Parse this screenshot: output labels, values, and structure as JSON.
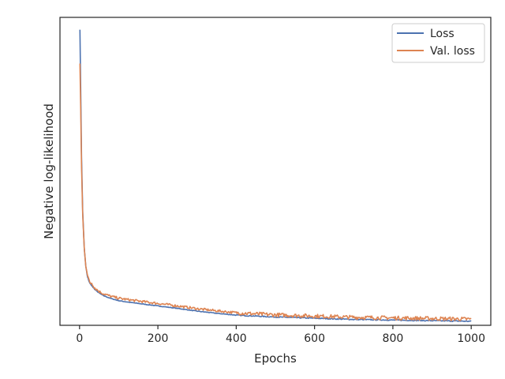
{
  "chart_data": {
    "type": "line",
    "title": "",
    "xlabel": "Epochs",
    "ylabel": "Negative log-likelihood",
    "xlim": [
      -50,
      1050
    ],
    "ylim": [
      0,
      1
    ],
    "x_ticks": [
      "0",
      "200",
      "400",
      "600",
      "800",
      "1000"
    ],
    "y_ticks_shown": false,
    "grid": false,
    "legend": "top-right",
    "series": [
      {
        "name": "Loss",
        "color": "#4c72b0",
        "x": [
          1,
          3,
          5,
          8,
          12,
          16,
          20,
          25,
          30,
          40,
          50,
          60,
          80,
          100,
          120,
          150,
          200,
          250,
          300,
          350,
          400,
          450,
          500,
          550,
          600,
          650,
          700,
          750,
          800,
          850,
          900,
          950,
          1000
        ],
        "y": [
          0.96,
          0.76,
          0.55,
          0.37,
          0.25,
          0.19,
          0.16,
          0.14,
          0.13,
          0.115,
          0.105,
          0.097,
          0.087,
          0.08,
          0.076,
          0.071,
          0.063,
          0.055,
          0.046,
          0.039,
          0.033,
          0.03,
          0.027,
          0.025,
          0.023,
          0.021,
          0.019,
          0.018,
          0.017,
          0.016,
          0.015,
          0.014,
          0.013
        ],
        "noise": 0.001
      },
      {
        "name": "Val. loss",
        "color": "#dd8452",
        "x": [
          1,
          3,
          5,
          8,
          12,
          16,
          20,
          25,
          30,
          40,
          50,
          60,
          80,
          100,
          120,
          150,
          200,
          250,
          300,
          350,
          400,
          450,
          500,
          550,
          600,
          650,
          700,
          750,
          800,
          850,
          900,
          950,
          1000
        ],
        "y": [
          0.85,
          0.7,
          0.52,
          0.36,
          0.25,
          0.19,
          0.165,
          0.145,
          0.135,
          0.12,
          0.11,
          0.103,
          0.094,
          0.088,
          0.084,
          0.079,
          0.071,
          0.063,
          0.054,
          0.047,
          0.041,
          0.037,
          0.034,
          0.032,
          0.03,
          0.028,
          0.026,
          0.025,
          0.024,
          0.023,
          0.022,
          0.021,
          0.02
        ],
        "noise": 0.004
      }
    ]
  }
}
